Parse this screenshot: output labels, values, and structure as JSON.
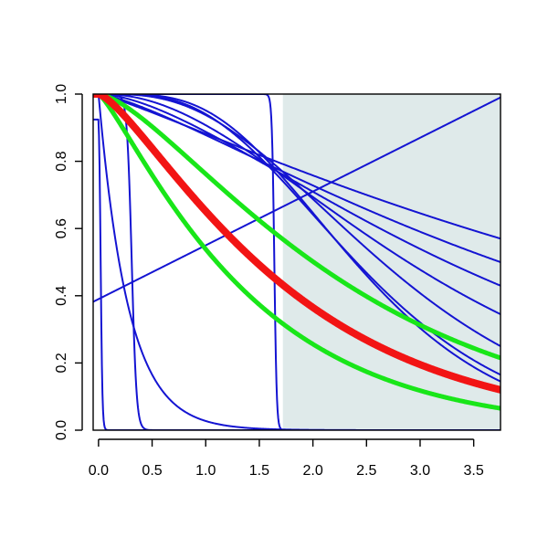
{
  "chart_data": {
    "type": "line",
    "title": "",
    "xlabel": "",
    "ylabel": "",
    "xlim": [
      -0.05,
      3.75
    ],
    "ylim": [
      0.0,
      1.0
    ],
    "x_ticks": [
      0.0,
      0.5,
      1.0,
      1.5,
      2.0,
      2.5,
      3.0,
      3.5
    ],
    "x_tick_labels": [
      "0.0",
      "0.5",
      "1.0",
      "1.5",
      "2.0",
      "2.5",
      "3.0",
      "3.5"
    ],
    "y_ticks": [
      0.0,
      0.2,
      0.4,
      0.6,
      0.8,
      1.0
    ],
    "y_tick_labels": [
      "0.0",
      "0.2",
      "0.4",
      "0.6",
      "0.8",
      "1.0"
    ],
    "grid": false,
    "legend": "none",
    "shaded_region": {
      "x_from": 1.72,
      "x_to": 3.75,
      "color": "#dfeaea"
    },
    "series": [
      {
        "role": "blue",
        "color": "#1414d2",
        "width": 2,
        "kind": "sigmoid",
        "x0": 0.02,
        "k": 0.008
      },
      {
        "role": "blue",
        "color": "#1414d2",
        "width": 2,
        "kind": "sigmoid",
        "x0": 0.31,
        "k": 0.022
      },
      {
        "role": "blue",
        "color": "#1414d2",
        "width": 2,
        "kind": "sigmoid",
        "x0": 1.64,
        "k": 0.011
      },
      {
        "role": "blue",
        "color": "#1414d2",
        "width": 2,
        "kind": "exp",
        "rate": 3.6
      },
      {
        "role": "blue",
        "color": "#1414d2",
        "width": 2,
        "kind": "linear",
        "y0": 0.39,
        "slope": 0.16
      },
      {
        "role": "blue",
        "color": "#1414d2",
        "width": 2,
        "kind": "gamma_tail",
        "shape": 1.18,
        "end": 0.57
      },
      {
        "role": "blue",
        "color": "#1414d2",
        "width": 2,
        "kind": "gamma_tail",
        "shape": 1.38,
        "end": 0.5
      },
      {
        "role": "blue",
        "color": "#1414d2",
        "width": 2,
        "kind": "gamma_tail",
        "shape": 1.75,
        "end": 0.43
      },
      {
        "role": "blue",
        "color": "#1414d2",
        "width": 2,
        "kind": "gamma_tail",
        "shape": 2.4,
        "end": 0.345
      },
      {
        "role": "blue",
        "color": "#1414d2",
        "width": 2,
        "kind": "gamma_tail",
        "shape": 3.6,
        "end": 0.25
      },
      {
        "role": "blue",
        "color": "#1414d2",
        "width": 2,
        "kind": "gamma_tail",
        "shape": 4.4,
        "end": 0.165
      },
      {
        "role": "blue",
        "color": "#1414d2",
        "width": 2,
        "kind": "gamma_tail",
        "shape": 5.0,
        "end": 0.145
      },
      {
        "role": "green",
        "color": "#19e619",
        "width": 5,
        "kind": "gamma_tail",
        "shape": 1.55,
        "end": 0.215
      },
      {
        "role": "green",
        "color": "#19e619",
        "width": 5,
        "kind": "gamma_tail",
        "shape": 1.25,
        "end": 0.065
      },
      {
        "role": "red",
        "color": "#f21414",
        "width": 8,
        "kind": "gamma_tail",
        "shape": 1.4,
        "end": 0.12
      }
    ]
  }
}
